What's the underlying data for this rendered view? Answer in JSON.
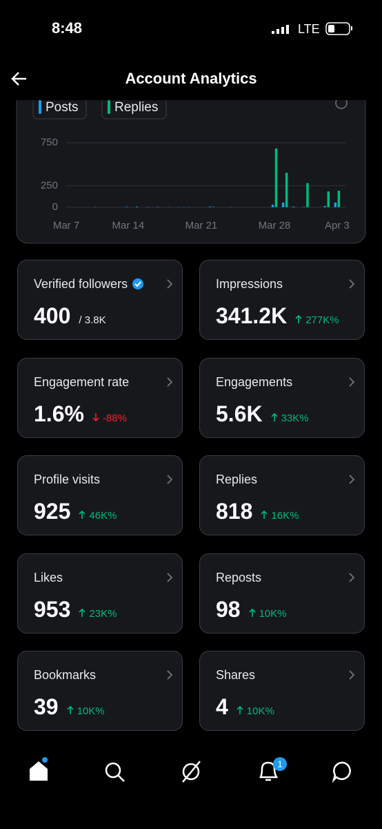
{
  "status_bar": {
    "time": "8:48",
    "network": "LTE"
  },
  "header": {
    "title": "Account Analytics"
  },
  "chart_data": {
    "type": "bar",
    "categories": [
      "Mar 7",
      null,
      null,
      null,
      null,
      null,
      null,
      "Mar 14",
      null,
      null,
      null,
      null,
      null,
      null,
      "Mar 21",
      null,
      null,
      null,
      null,
      null,
      null,
      "Mar 28",
      null,
      null,
      null,
      null,
      null,
      "Apr 3"
    ],
    "series": [
      {
        "name": "Posts",
        "color": "#1d9bf0",
        "values": [
          0,
          0,
          0,
          0,
          3,
          0,
          0,
          6,
          8,
          4,
          5,
          3,
          3,
          3,
          0,
          8,
          0,
          3,
          0,
          0,
          0,
          30,
          55,
          8,
          5,
          0,
          15,
          55
        ]
      },
      {
        "name": "Replies",
        "color": "#00ba7c",
        "values": [
          0,
          0,
          0,
          0,
          0,
          0,
          0,
          0,
          0,
          0,
          0,
          0,
          0,
          0,
          0,
          5,
          0,
          0,
          0,
          0,
          0,
          685,
          403,
          0,
          282,
          0,
          185,
          194
        ]
      }
    ],
    "ylim": [
      0,
      780
    ],
    "yticks": [
      0,
      250,
      750
    ],
    "grid": true
  },
  "cards": [
    {
      "label": "Verified followers",
      "value": "400",
      "total": "/ 3.8K",
      "verified": true
    },
    {
      "label": "Impressions",
      "value": "341.2K",
      "change": "277K%",
      "trend": "up"
    },
    {
      "label": "Engagement rate",
      "value": "1.6%",
      "change": "-88%",
      "trend": "down"
    },
    {
      "label": "Engagements",
      "value": "5.6K",
      "change": "33K%",
      "trend": "up"
    },
    {
      "label": "Profile visits",
      "value": "925",
      "change": "46K%",
      "trend": "up"
    },
    {
      "label": "Replies",
      "value": "818",
      "change": "16K%",
      "trend": "up"
    },
    {
      "label": "Likes",
      "value": "953",
      "change": "23K%",
      "trend": "up"
    },
    {
      "label": "Reposts",
      "value": "98",
      "change": "10K%",
      "trend": "up"
    },
    {
      "label": "Bookmarks",
      "value": "39",
      "change": "10K%",
      "trend": "up"
    },
    {
      "label": "Shares",
      "value": "4",
      "change": "10K%",
      "trend": "up"
    }
  ],
  "nav": {
    "notification_count": "1"
  }
}
